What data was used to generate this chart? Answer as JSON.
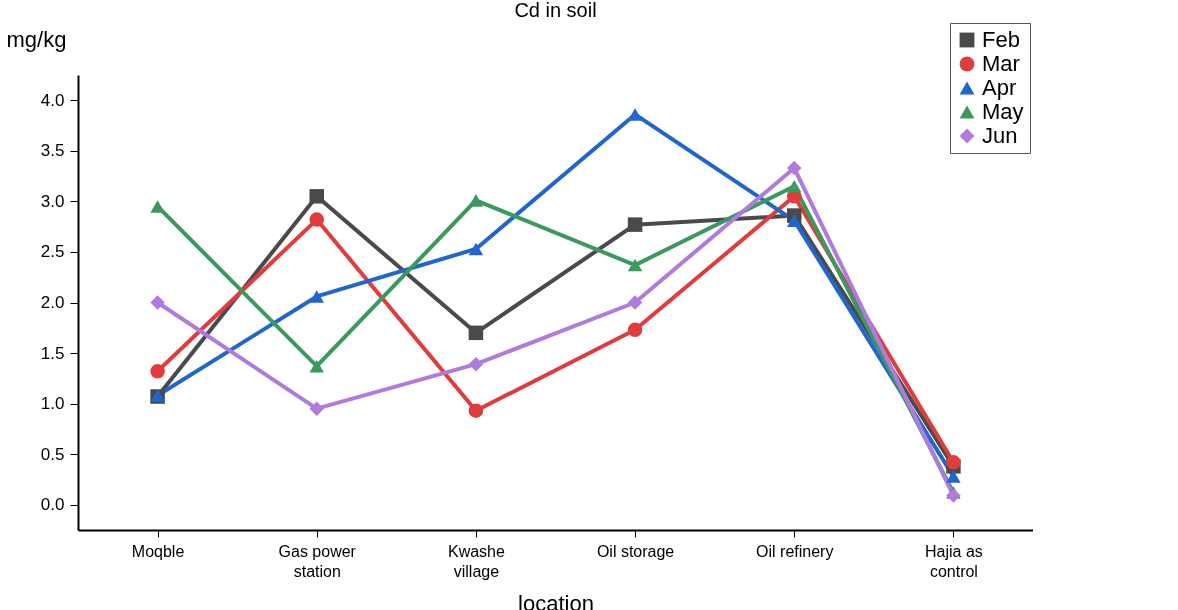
{
  "chart_data": {
    "type": "line",
    "title": "Cd in soil",
    "xlabel": "location",
    "ylabel": "mg/kg",
    "categories": [
      "Moqble",
      "Gas power station",
      "Kwashe village",
      "Oil storage",
      "Oil refinery",
      "Hajia as control"
    ],
    "series": [
      {
        "name": "Feb",
        "color": "#4a4a4a",
        "marker": "square",
        "values": [
          1.07,
          3.05,
          1.7,
          2.77,
          2.86,
          0.38
        ]
      },
      {
        "name": "Mar",
        "color": "#e23b3b",
        "marker": "circle",
        "values": [
          1.32,
          2.82,
          0.93,
          1.73,
          3.05,
          0.42
        ]
      },
      {
        "name": "Apr",
        "color": "#1f66d1",
        "marker": "triangle",
        "values": [
          1.08,
          2.06,
          2.53,
          3.86,
          2.81,
          0.28
        ]
      },
      {
        "name": "May",
        "color": "#3a9a5e",
        "marker": "triangle",
        "values": [
          2.95,
          1.37,
          3.01,
          2.37,
          3.15,
          0.12
        ]
      },
      {
        "name": "Jun",
        "color": "#b07ae0",
        "marker": "diamond",
        "values": [
          2.0,
          0.95,
          1.39,
          2.0,
          3.33,
          0.09
        ]
      }
    ],
    "ylim": [
      -0.25,
      4.25
    ],
    "yticks": [
      {
        "value": 0,
        "label": "0.0"
      },
      0.5,
      {
        "value": 1,
        "label": "1.0"
      },
      1.5,
      {
        "value": 2,
        "label": "2.0"
      },
      2.5,
      {
        "value": 3,
        "label": "3.0"
      },
      3.5,
      {
        "value": 4,
        "label": "4.0"
      }
    ],
    "grid": false,
    "legend": "top right",
    "line_style": "solid"
  }
}
